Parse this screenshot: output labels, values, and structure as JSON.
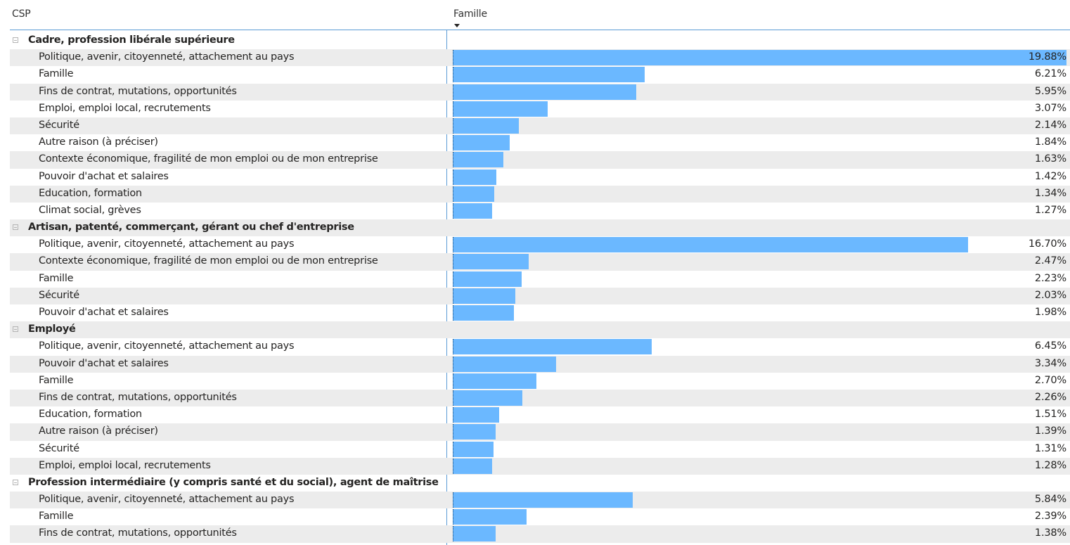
{
  "header": {
    "col1": "CSP",
    "col2": "Famille"
  },
  "max_value": 19.88,
  "groups": [
    {
      "label": "Cadre, profession libérale supérieure",
      "rows": [
        {
          "label": "Politique, avenir, citoyenneté, attachement au pays",
          "value": 19.88,
          "display": "19.88%"
        },
        {
          "label": "Famille",
          "value": 6.21,
          "display": "6.21%"
        },
        {
          "label": "Fins de contrat, mutations, opportunités",
          "value": 5.95,
          "display": "5.95%"
        },
        {
          "label": "Emploi, emploi local, recrutements",
          "value": 3.07,
          "display": "3.07%"
        },
        {
          "label": "Sécurité",
          "value": 2.14,
          "display": "2.14%"
        },
        {
          "label": "Autre raison (à préciser)",
          "value": 1.84,
          "display": "1.84%"
        },
        {
          "label": "Contexte économique, fragilité de mon emploi ou de mon entreprise",
          "value": 1.63,
          "display": "1.63%"
        },
        {
          "label": "Pouvoir d'achat et salaires",
          "value": 1.42,
          "display": "1.42%"
        },
        {
          "label": "Education, formation",
          "value": 1.34,
          "display": "1.34%"
        },
        {
          "label": "Climat social, grèves",
          "value": 1.27,
          "display": "1.27%"
        }
      ]
    },
    {
      "label": "Artisan, patenté, commerçant, gérant ou chef d'entreprise",
      "rows": [
        {
          "label": "Politique, avenir, citoyenneté, attachement au pays",
          "value": 16.7,
          "display": "16.70%"
        },
        {
          "label": "Contexte économique, fragilité de mon emploi ou de mon entreprise",
          "value": 2.47,
          "display": "2.47%"
        },
        {
          "label": "Famille",
          "value": 2.23,
          "display": "2.23%"
        },
        {
          "label": "Sécurité",
          "value": 2.03,
          "display": "2.03%"
        },
        {
          "label": "Pouvoir d'achat et salaires",
          "value": 1.98,
          "display": "1.98%"
        }
      ]
    },
    {
      "label": "Employé",
      "rows": [
        {
          "label": "Politique, avenir, citoyenneté, attachement au pays",
          "value": 6.45,
          "display": "6.45%"
        },
        {
          "label": "Pouvoir d'achat et salaires",
          "value": 3.34,
          "display": "3.34%"
        },
        {
          "label": "Famille",
          "value": 2.7,
          "display": "2.70%"
        },
        {
          "label": "Fins de contrat, mutations, opportunités",
          "value": 2.26,
          "display": "2.26%"
        },
        {
          "label": "Education, formation",
          "value": 1.51,
          "display": "1.51%"
        },
        {
          "label": "Autre raison (à préciser)",
          "value": 1.39,
          "display": "1.39%"
        },
        {
          "label": "Sécurité",
          "value": 1.31,
          "display": "1.31%"
        },
        {
          "label": "Emploi, emploi local, recrutements",
          "value": 1.28,
          "display": "1.28%"
        }
      ]
    },
    {
      "label": "Profession intermédiaire (y compris santé et du social), agent de maîtrise",
      "rows": [
        {
          "label": "Politique, avenir, citoyenneté, attachement au pays",
          "value": 5.84,
          "display": "5.84%"
        },
        {
          "label": "Famille",
          "value": 2.39,
          "display": "2.39%"
        },
        {
          "label": "Fins de contrat, mutations, opportunités",
          "value": 1.38,
          "display": "1.38%"
        }
      ]
    }
  ],
  "colors": {
    "bar": "#6bb8ff",
    "shade": "#ececec",
    "accent_line": "#5B9BD5"
  }
}
